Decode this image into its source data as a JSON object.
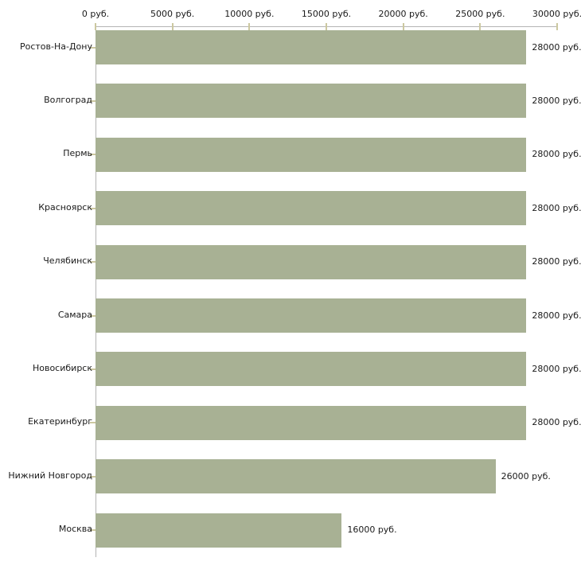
{
  "chart_data": {
    "type": "bar",
    "orientation": "horizontal",
    "title": "",
    "xlabel": "",
    "ylabel": "",
    "unit": "руб.",
    "categories": [
      "Ростов-На-Дону",
      "Волгоград",
      "Пермь",
      "Красноярск",
      "Челябинск",
      "Самара",
      "Новосибирск",
      "Екатеринбург",
      "Нижний Новгород",
      "Москва"
    ],
    "values": [
      28000,
      28000,
      28000,
      28000,
      28000,
      28000,
      28000,
      28000,
      26000,
      16000
    ],
    "value_labels": [
      "28000 руб.",
      "28000 руб.",
      "28000 руб.",
      "28000 руб.",
      "28000 руб.",
      "28000 руб.",
      "28000 руб.",
      "28000 руб.",
      "26000 руб.",
      "16000 руб."
    ],
    "x_ticks": [
      0,
      5000,
      10000,
      15000,
      20000,
      25000,
      30000
    ],
    "x_tick_labels": [
      "0 руб.",
      "5000 руб.",
      "10000 руб.",
      "15000 руб.",
      "20000 руб.",
      "25000 руб.",
      "30000 руб."
    ],
    "xlim": [
      0,
      30000
    ],
    "grid": false,
    "legend": false,
    "colors": {
      "bar": "#a8b194",
      "axis": "#b4b4b4",
      "tick": "#ccc8a0",
      "text": "#1a1a1a",
      "background": "#ffffff"
    }
  }
}
